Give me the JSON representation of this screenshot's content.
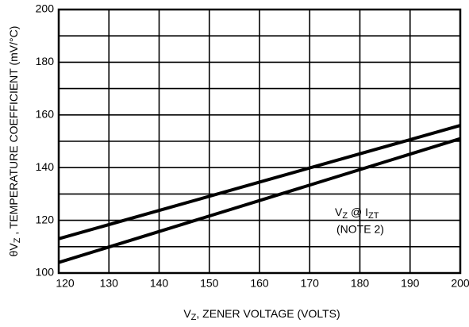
{
  "chart_data": {
    "type": "line",
    "x_label": {
      "main": "V",
      "sub": "Z",
      "rest": ", ZENER VOLTAGE (VOLTS)"
    },
    "y_label": {
      "main": "θV",
      "sub": "Z",
      "rest": " , TEMPERATURE COEFFICIENT (mV/°C)"
    },
    "annotation": {
      "v": "V",
      "v_sub": "Z",
      "mid": " @ I",
      "i_sub": "ZT",
      "note": "(NOTE 2)"
    },
    "x": [
      120,
      160,
      200
    ],
    "series": [
      {
        "color": "#000000",
        "values": [
          113,
          134.5,
          156
        ]
      },
      {
        "color": "#000000",
        "values": [
          104,
          127.5,
          151
        ]
      }
    ],
    "xlim": [
      120,
      200
    ],
    "xticks": [
      120,
      130,
      140,
      150,
      160,
      170,
      180,
      190,
      200
    ],
    "ylim": [
      100,
      200
    ],
    "yticks": [
      100,
      120,
      140,
      160,
      180,
      200
    ],
    "y_minor_ticks": [
      110,
      130,
      150,
      170,
      190
    ],
    "grid": true
  }
}
